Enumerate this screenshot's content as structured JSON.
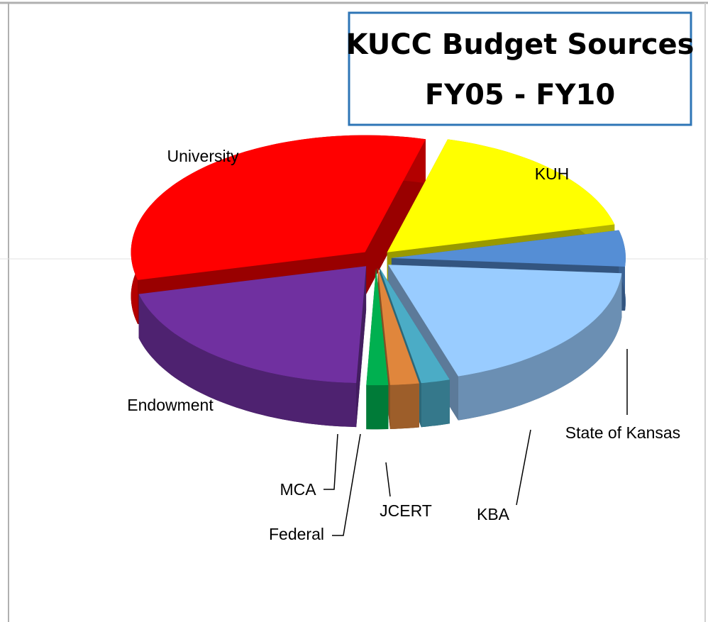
{
  "chart_data": {
    "type": "pie",
    "title": "KUCC Budget Sources",
    "subtitle": "FY05 - FY10",
    "categories": [
      "KUH",
      "State of Kansas",
      "KBA",
      "JCERT",
      "Federal",
      "MCA",
      "Endowment",
      "University"
    ],
    "values": [
      17,
      5,
      19,
      2,
      2,
      1.5,
      20.5,
      33
    ],
    "colors": [
      "#ffff00",
      "#558ed5",
      "#99ccff",
      "#4bacc6",
      "#e0863c",
      "#00b050",
      "#7030a0",
      "#ff0000"
    ]
  }
}
